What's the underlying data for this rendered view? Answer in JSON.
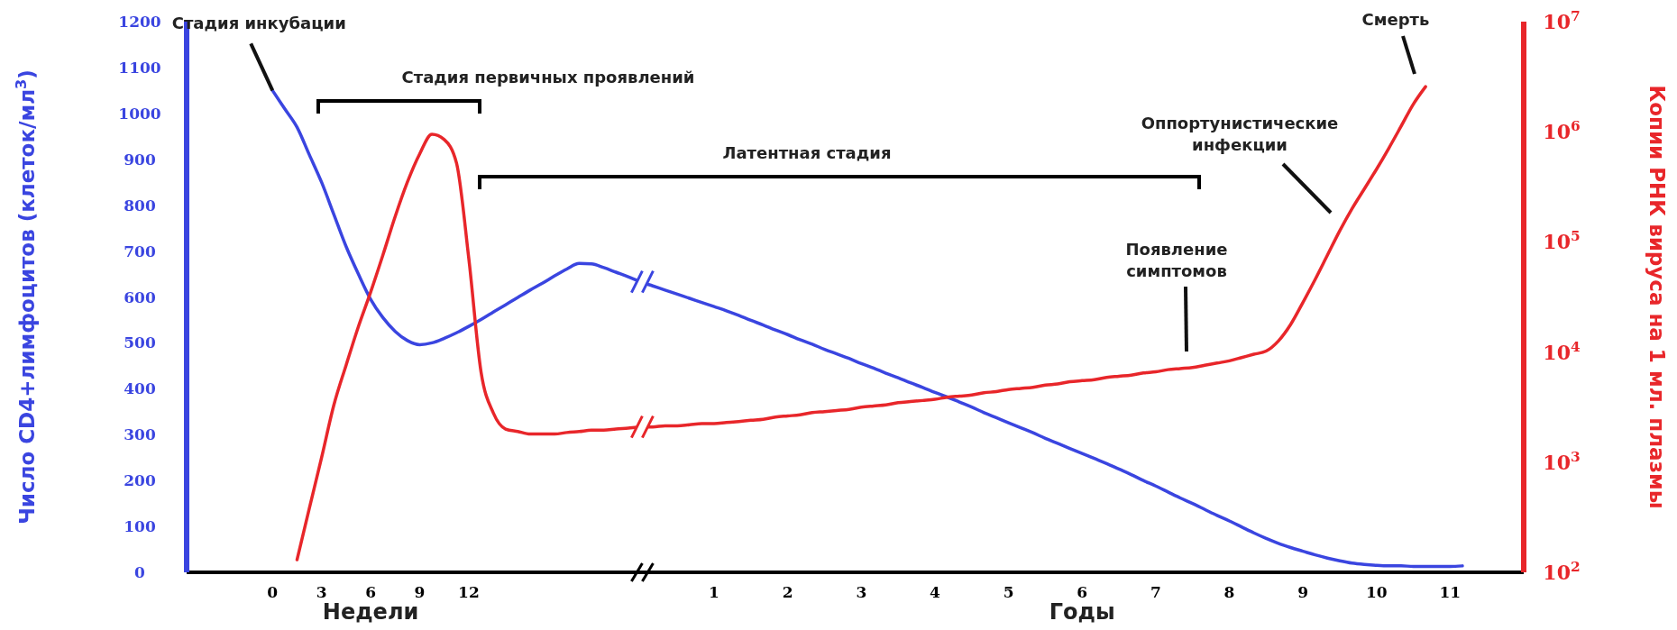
{
  "chart_data": {
    "type": "line",
    "xlabel": "Недели",
    "ylabel": "Число CD4+лимфоцитов (клеток/мл$^{3}$)",
    "y2label": "Копии РНК вируса на 1 мл. плазмы",
    "categories": [
      null,
      null,
      null,
      null,
      null,
      null,
      null,
      "0",
      null,
      null,
      null,
      "3",
      null,
      null,
      null,
      "6",
      null,
      null,
      null,
      "9",
      null,
      null,
      null,
      "12",
      null,
      null,
      null,
      null,
      null,
      null,
      null,
      null,
      null,
      null,
      null,
      null,
      null,
      null,
      null,
      null,
      null,
      null,
      null,
      "1",
      null,
      null,
      null,
      null,
      null,
      "2",
      null,
      null,
      null,
      null,
      null,
      "3",
      null,
      null,
      null,
      null,
      null,
      "4",
      null,
      null,
      null,
      null,
      null,
      "5",
      null,
      null,
      null,
      null,
      null,
      "6",
      null,
      null,
      null,
      null,
      null,
      "7",
      null,
      null,
      null,
      null,
      null,
      "8",
      null,
      null,
      null,
      null,
      null,
      "9",
      null,
      null,
      null,
      null,
      null,
      "10",
      null,
      null,
      null,
      null,
      null,
      "11",
      null,
      null,
      null,
      null,
      null,
      null
    ],
    "ylim": [
      0,
      1200
    ],
    "yticks": [
      0,
      100,
      200,
      300,
      400,
      500,
      600,
      700,
      800,
      900,
      1000,
      1100,
      1200
    ],
    "y2lim": [
      100,
      10000000
    ],
    "y2ticks": [
      {
        "value": 100,
        "label": "10$^{2}$"
      },
      {
        "value": 1000,
        "label": "10$^{3}$"
      },
      {
        "value": 10000,
        "label": "10$^{4}$"
      },
      {
        "value": 100000,
        "label": "10$^{5}$"
      },
      {
        "value": 1000000,
        "label": "10$^{6}$"
      },
      {
        "value": 10000000,
        "label": "10$^{7}$"
      }
    ],
    "log": "y2",
    "series": [
      {
        "color": "#3a45e0",
        "values": [
          null,
          null,
          null,
          null,
          null,
          null,
          null,
          1050,
          1010,
          970,
          910,
          850,
          780,
          710,
          650,
          595,
          555,
          525,
          505,
          496,
          500,
          510,
          522,
          536,
          551,
          567,
          583,
          599,
          615,
          630,
          646,
          661,
          673,
          672,
          664,
          654,
          644,
          633,
          624,
          615,
          606,
          597,
          588,
          579,
          570,
          560,
          549,
          539,
          528,
          518,
          507,
          497,
          486,
          476,
          466,
          455,
          445,
          434,
          424,
          413,
          403,
          392,
          382,
          371,
          360,
          348,
          337,
          326,
          315,
          304,
          292,
          281,
          270,
          259,
          248,
          237,
          225,
          213,
          200,
          188,
          175,
          162,
          150,
          137,
          124,
          112,
          99,
          86,
          74,
          63,
          54,
          46,
          38,
          31,
          25,
          20,
          17,
          15,
          14,
          14,
          13,
          13,
          13,
          13,
          14,
          null,
          null,
          null,
          null,
          null
        ]
      },
      {
        "color": "#e8262a",
        "axis": "y2",
        "values": [
          null,
          null,
          null,
          null,
          null,
          null,
          null,
          null,
          null,
          130,
          380,
          1100,
          3300,
          7600,
          17000,
          35000,
          76000,
          170000,
          350000,
          630000,
          950000,
          850000,
          520000,
          71000,
          6600,
          2800,
          2000,
          1900,
          1800,
          1800,
          1800,
          1860,
          1900,
          1950,
          1950,
          2000,
          2040,
          2090,
          2090,
          2140,
          2140,
          2190,
          2240,
          2240,
          2290,
          2340,
          2400,
          2450,
          2570,
          2630,
          2690,
          2820,
          2880,
          2950,
          3020,
          3160,
          3240,
          3310,
          3470,
          3550,
          3630,
          3720,
          3890,
          3980,
          4070,
          4270,
          4370,
          4570,
          4680,
          4790,
          5010,
          5130,
          5370,
          5500,
          5620,
          5890,
          6030,
          6170,
          6460,
          6610,
          6920,
          7080,
          7240,
          7590,
          7940,
          8320,
          8910,
          9550,
          10200,
          12600,
          17800,
          28200,
          45700,
          75900,
          126000,
          200000,
          302000,
          457000,
          708000,
          1120000,
          1780000,
          2570000,
          null,
          null,
          null,
          null,
          null,
          null,
          null,
          null
        ]
      }
    ],
    "annotations": [
      "Годы",
      "Стадия первичных проявлений",
      "Латентная стадия",
      {
        "text": "Стадия инкубации",
        "x": "0",
        "y": 1050
      },
      "Смерть",
      "Оппортунистические инфекции",
      "Появление симптомов"
    ]
  }
}
